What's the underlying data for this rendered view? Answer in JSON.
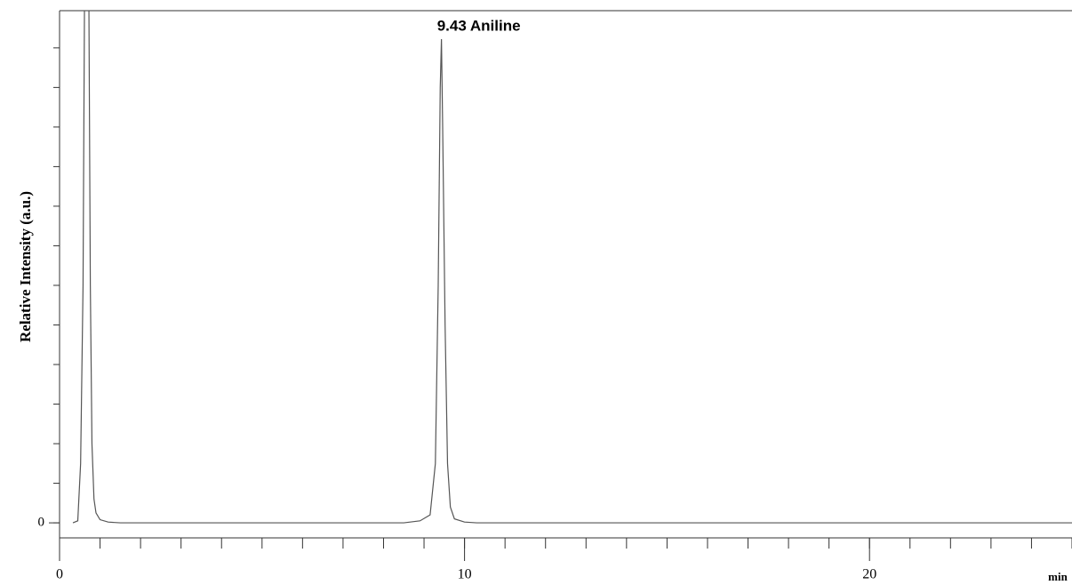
{
  "chart_data": {
    "type": "line",
    "annotation": "9.43 Aniline",
    "y_label": "Relative Intensity (a.u.)",
    "x_unit": "min",
    "x": [
      0.33,
      0.45,
      0.52,
      0.58,
      0.62,
      0.72,
      0.76,
      0.8,
      0.85,
      0.9,
      1.0,
      1.2,
      1.5,
      8.5,
      8.9,
      9.15,
      9.28,
      9.35,
      9.4,
      9.43,
      9.46,
      9.52,
      9.58,
      9.65,
      9.75,
      10.0,
      10.3,
      25
    ],
    "series": [
      {
        "color": "#555555",
        "values": [
          0,
          0.05,
          1.5,
          6,
          14,
          14,
          6,
          2,
          0.6,
          0.25,
          0.08,
          0.02,
          0,
          0,
          0.05,
          0.2,
          1.5,
          6,
          11,
          12.22,
          10,
          5,
          1.5,
          0.4,
          0.1,
          0.02,
          0,
          0
        ]
      }
    ],
    "xlim": [
      0,
      25
    ],
    "xticks": [
      0,
      10,
      20
    ],
    "xminor_step": 1,
    "ylim": [
      -0.38,
      12.94
    ],
    "yticks": [
      0
    ],
    "yminor_step": 1
  }
}
